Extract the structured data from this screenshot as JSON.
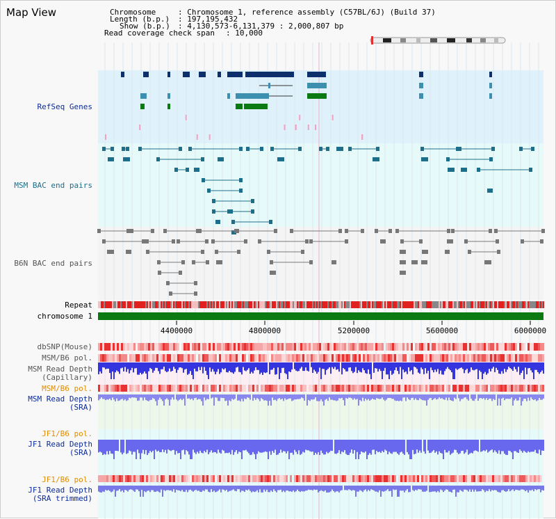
{
  "title": "Map View",
  "info": {
    "chromosome_key": "Chromosome",
    "chromosome_val": ": Chromosome 1, reference assembly (C57BL/6J) (Build 37)",
    "length_key": "Length (b.p.)",
    "length_val": ": 197,195,432",
    "show_key": "Show (b.p.)",
    "show_val": ": 4,130,573-6,131,379 : 2,000,807 bp",
    "coverage_key": "Read coverage check span",
    "coverage_val": ": 10,000"
  },
  "tracks": {
    "refseq": "RefSeq Genes",
    "msm_bac": "MSM BAC end pairs",
    "b6n_bac": "B6N BAC end pairs",
    "repeat": "Repeat",
    "chromosome": "chromosome 1",
    "dbsnp": "dbSNP(Mouse)",
    "msm_b6_pol": "MSM/B6 pol.",
    "msm_depth_cap_1": "MSM Read Depth",
    "msm_depth_cap_2": "(Capillary)",
    "msm_b6_pol_2": "MSM/B6 pol.",
    "msm_depth_sra_1": "MSM Read Depth",
    "msm_depth_sra_2": "(SRA)",
    "jf1_b6_pol": "JF1/B6 pol.",
    "jf1_depth_1": "JF1 Read Depth",
    "jf1_depth_2": "(SRA)",
    "jf1_b6_pol_2": "JF1/B6 pol.",
    "jf1_trim_1": "JF1 Read Depth",
    "jf1_trim_2": "(SRA trimmed)"
  },
  "axis_ticks": [
    "4400000",
    "4800000",
    "5200000",
    "5600000",
    "6000000"
  ],
  "colors": {
    "refseq_bg": "#dff2fb",
    "msm_bg": "#e6fafa",
    "b6n_bg": "#f4f4f4",
    "gene_navy": "#0d2f6b",
    "gene_teal": "#3d8fb0",
    "gene_green": "#0b7a12",
    "chromosome_green": "#0b7a12",
    "repeat_red": "#e12020",
    "depth_blue": "#4040ee"
  }
}
